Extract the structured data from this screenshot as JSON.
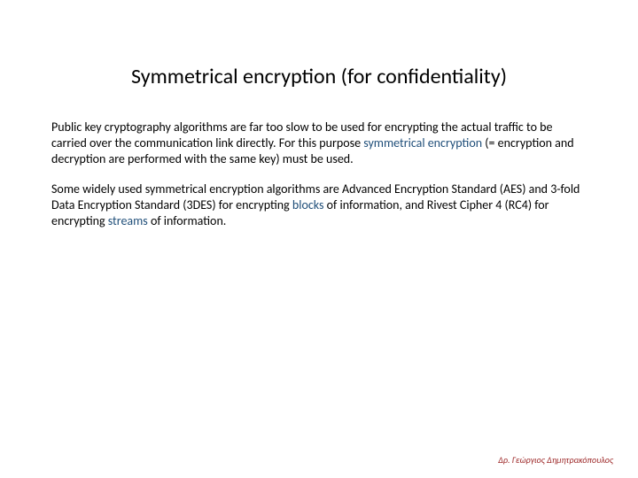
{
  "slide": {
    "title": "Symmetrical encryption (for confidentiality)",
    "para1_a": "Public key cryptography algorithms are far too slow to be used for encrypting the actual traffic to be carried over the communication link directly. For this purpose ",
    "para1_kw": "symmetrical encryption",
    "para1_b": " (= encryption and decryption are performed with the same key) must be used.",
    "para2_a": "Some widely used symmetrical encryption algorithms are Advanced Encryption Standard (AES) and 3-fold Data Encryption Standard (3DES) for encrypting ",
    "para2_kw1": "blocks",
    "para2_b": " of information, and Rivest Cipher 4 (RC4) for encrypting ",
    "para2_kw2": "streams",
    "para2_c": " of information.",
    "footer": "Δρ. Γεώργιος Δημητρακόπουλος"
  },
  "colors": {
    "keyword": "#1f4e79",
    "footer": "#9e2a2a",
    "text": "#000000",
    "background": "#ffffff"
  },
  "typography": {
    "title_fontsize": 24,
    "body_fontsize": 14,
    "footer_fontsize": 10,
    "font_family": "Calibri"
  }
}
